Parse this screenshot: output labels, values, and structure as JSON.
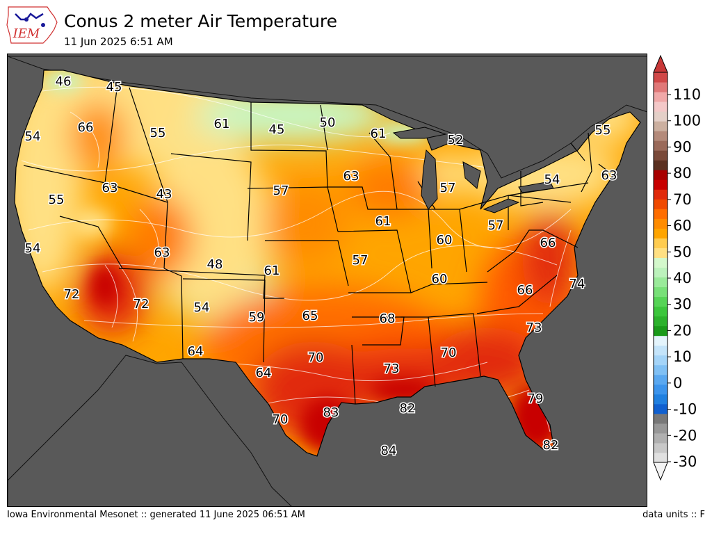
{
  "header": {
    "title": "Conus 2 meter Air Temperature",
    "subtitle": "11 Jun 2025 6:51 AM",
    "logo_text": "IEM"
  },
  "footer": {
    "credit": "Iowa Environmental Mesonet :: generated 11 June 2025 06:51 AM",
    "units": "data units :: F"
  },
  "colors": {
    "ocean": "#595959",
    "temp_cool": "#c8f7c5",
    "temp_mild": "#ffe083",
    "temp_warm": "#ffa500",
    "temp_hot": "#e1250c",
    "temp_very_hot": "#c00000"
  },
  "colorbar": {
    "ticks": [
      "110",
      "100",
      "90",
      "80",
      "70",
      "60",
      "50",
      "40",
      "30",
      "20",
      "10",
      "0",
      "-10",
      "-20",
      "-30"
    ],
    "colors": [
      "#e0e0e0",
      "#c8c8c8",
      "#b0b0b0",
      "#989898",
      "#787878",
      "#1060d0",
      "#2080e0",
      "#3c94ec",
      "#5aa8f0",
      "#80c0f4",
      "#a4d4f8",
      "#c4e4fa",
      "#e4f4fc",
      "#1a9a1a",
      "#2cb22c",
      "#3cc63c",
      "#56d456",
      "#78e078",
      "#9aea9a",
      "#bcf2bc",
      "#d4f8cc",
      "#ffe083",
      "#ffcc50",
      "#ffa500",
      "#ff8c00",
      "#ff6e00",
      "#f04a00",
      "#e12a0a",
      "#c80000",
      "#a80000",
      "#5a3020",
      "#7a4a3a",
      "#9a6a5a",
      "#b48a7a",
      "#ccb0a0",
      "#e4d0c8",
      "#f4c8c8",
      "#f0a8a8",
      "#e07878",
      "#d04848"
    ]
  },
  "stations": [
    {
      "value": "46"
    },
    {
      "value": "45"
    },
    {
      "value": "54"
    },
    {
      "value": "66"
    },
    {
      "value": "55"
    },
    {
      "value": "61"
    },
    {
      "value": "45"
    },
    {
      "value": "50"
    },
    {
      "value": "61"
    },
    {
      "value": "52"
    },
    {
      "value": "55"
    },
    {
      "value": "55"
    },
    {
      "value": "63"
    },
    {
      "value": "43"
    },
    {
      "value": "57"
    },
    {
      "value": "63"
    },
    {
      "value": "57"
    },
    {
      "value": "54"
    },
    {
      "value": "63"
    },
    {
      "value": "54"
    },
    {
      "value": "63"
    },
    {
      "value": "61"
    },
    {
      "value": "57"
    },
    {
      "value": "60"
    },
    {
      "value": "66"
    },
    {
      "value": "48"
    },
    {
      "value": "61"
    },
    {
      "value": "57"
    },
    {
      "value": "72"
    },
    {
      "value": "72"
    },
    {
      "value": "60"
    },
    {
      "value": "66"
    },
    {
      "value": "74"
    },
    {
      "value": "54"
    },
    {
      "value": "59"
    },
    {
      "value": "65"
    },
    {
      "value": "68"
    },
    {
      "value": "73"
    },
    {
      "value": "64"
    },
    {
      "value": "70"
    },
    {
      "value": "73"
    },
    {
      "value": "70"
    },
    {
      "value": "64"
    },
    {
      "value": "82"
    },
    {
      "value": "79"
    },
    {
      "value": "70"
    },
    {
      "value": "83"
    },
    {
      "value": "84"
    },
    {
      "value": "82"
    }
  ]
}
